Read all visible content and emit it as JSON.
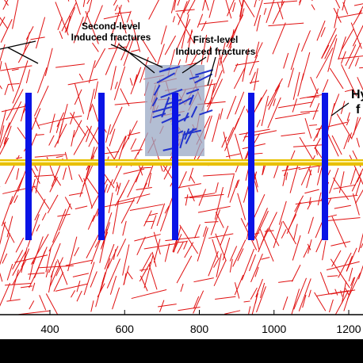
{
  "annotations": {
    "second_level": [
      "Second-level",
      "Induced fractures"
    ],
    "first_level": [
      "First-level",
      "Induced fractures"
    ],
    "right_cut": [
      "Hy",
      "f"
    ]
  },
  "x_axis": {
    "ticks": [
      400,
      600,
      800,
      1000,
      1200
    ]
  }
}
